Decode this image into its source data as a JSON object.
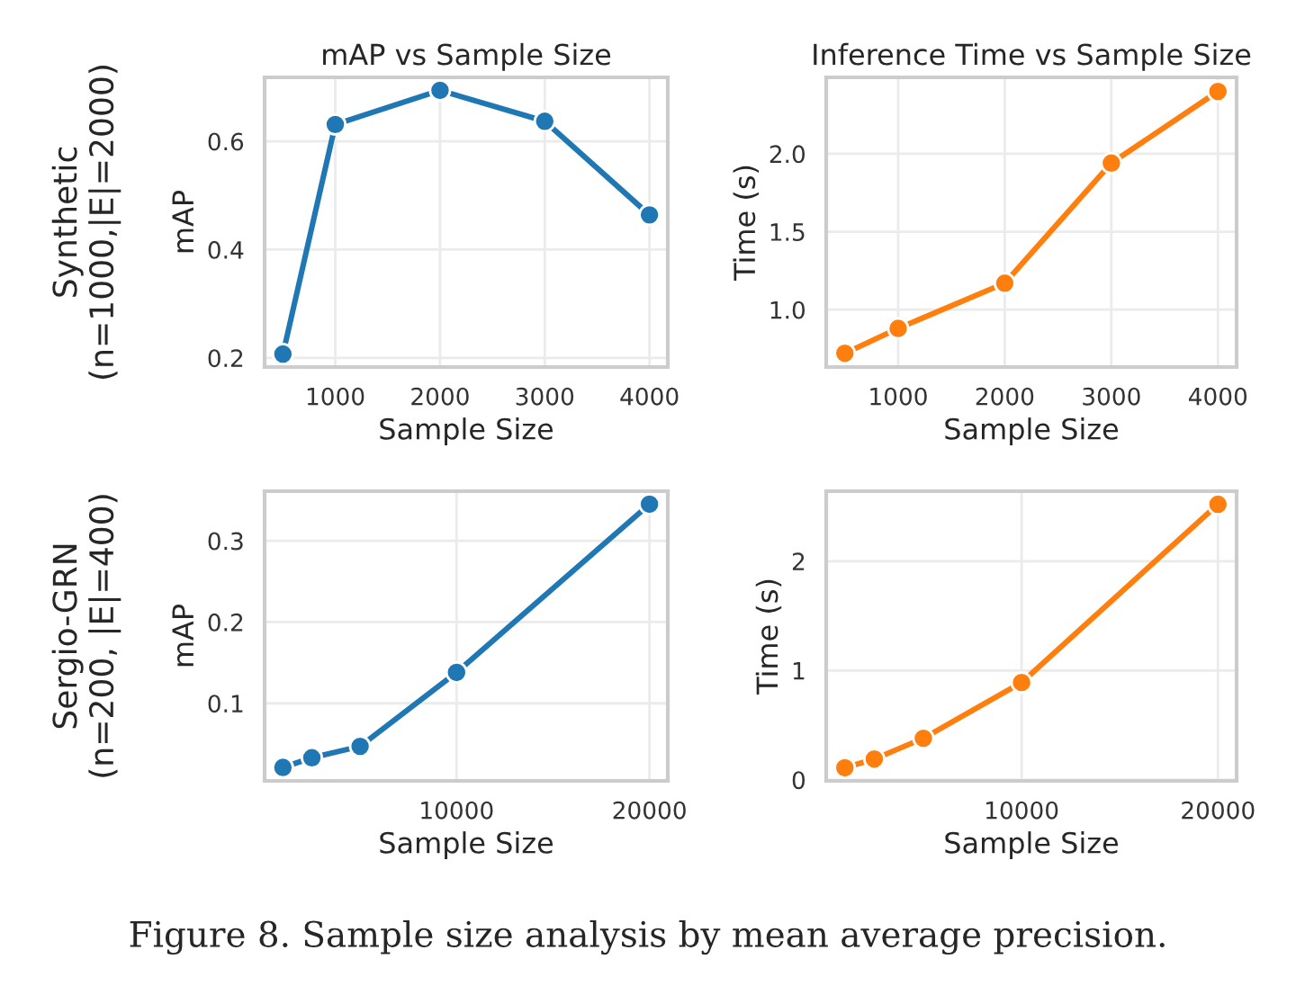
{
  "chart_data": [
    {
      "type": "line",
      "title": "mAP vs Sample Size",
      "xlabel": "Sample Size",
      "ylabel": "mAP",
      "x": [
        500,
        1000,
        2000,
        3000,
        4000
      ],
      "series": [
        {
          "color": "#1f77b4",
          "values": [
            0.207,
            0.631,
            0.694,
            0.637,
            0.464
          ]
        }
      ],
      "xlim": [
        325,
        4175
      ],
      "xticks": [
        1000,
        2000,
        3000,
        4000
      ],
      "ylim": [
        0.183,
        0.718
      ],
      "yticks": [
        0.2,
        0.4,
        0.6
      ],
      "grid": true,
      "marker": "circle",
      "line_style": "solid",
      "annotations": [
        "Synthetic\n(n=1000,|E|=2000)"
      ]
    },
    {
      "type": "line",
      "title": "Inference Time vs Sample Size",
      "xlabel": "Sample Size",
      "ylabel": "Time (s)",
      "x": [
        500,
        1000,
        2000,
        3000,
        4000
      ],
      "series": [
        {
          "color": "#ff7f0e",
          "values": [
            0.72,
            0.88,
            1.17,
            1.94,
            2.4
          ]
        }
      ],
      "xlim": [
        325,
        4175
      ],
      "xticks": [
        1000,
        2000,
        3000,
        4000
      ],
      "ylim": [
        0.632,
        2.49
      ],
      "yticks": [
        {
          "value": 1,
          "label": "1.0"
        },
        1.5,
        {
          "value": 2,
          "label": "2.0"
        }
      ],
      "grid": true,
      "marker": "circle",
      "line_style": "solid"
    },
    {
      "type": "line",
      "xlabel": "Sample Size",
      "ylabel": "mAP",
      "x": [
        1000,
        2500,
        5000,
        10000,
        20000
      ],
      "series": [
        {
          "color": "#1f77b4",
          "values": [
            0.021,
            0.033,
            0.047,
            0.138,
            0.345
          ]
        }
      ],
      "xlim": [
        50,
        20950
      ],
      "xticks": [
        10000,
        20000
      ],
      "ylim": [
        0.0045,
        0.361
      ],
      "yticks": [
        0.1,
        0.2,
        0.3
      ],
      "grid": true,
      "marker": "circle",
      "line_style": "solid",
      "annotations": [
        "Sergio-GRN\n(n=200, |E|=400)"
      ]
    },
    {
      "type": "line",
      "xlabel": "Sample Size",
      "ylabel": "Time (s)",
      "x": [
        1000,
        2500,
        5000,
        10000,
        20000
      ],
      "series": [
        {
          "color": "#ff7f0e",
          "values": [
            0.11,
            0.19,
            0.38,
            0.89,
            2.52
          ]
        }
      ],
      "xlim": [
        50,
        20950
      ],
      "xticks": [
        10000,
        20000
      ],
      "ylim": [
        -0.01,
        2.64
      ],
      "yticks": [
        0,
        1,
        2
      ],
      "grid": true,
      "marker": "circle",
      "line_style": "solid",
      "annotations": [
        "Figure 8. Sample size analysis by mean average precision."
      ]
    }
  ]
}
